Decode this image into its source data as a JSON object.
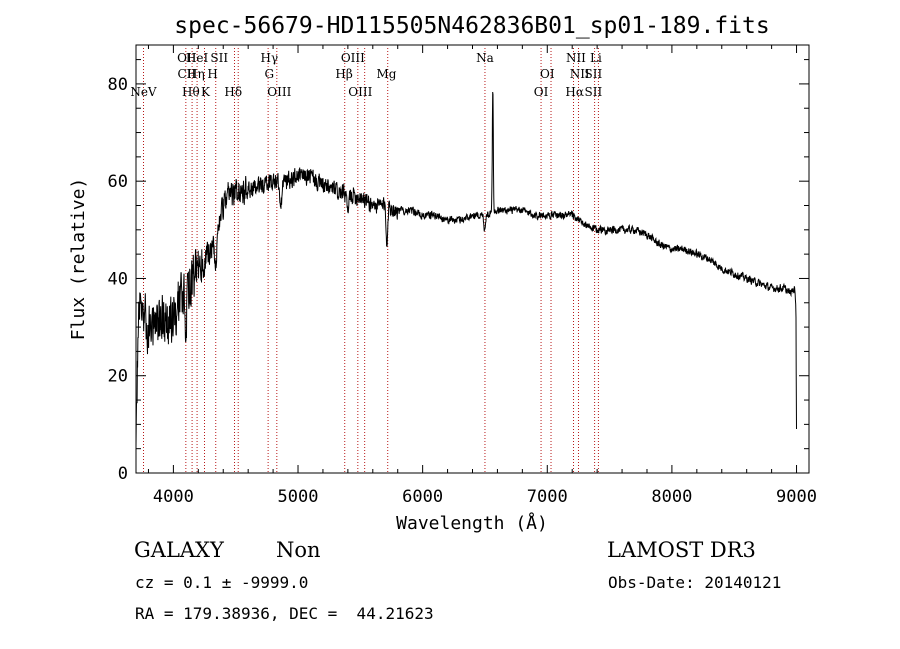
{
  "chart_data": {
    "type": "line",
    "title": "spec-56679-HD115505N462836B01_sp01-189.fits",
    "xlabel": "Wavelength (Å)",
    "ylabel": "Flux (relative)",
    "xlim": [
      3700,
      9100
    ],
    "ylim": [
      0,
      88
    ],
    "x_ticks": [
      4000,
      5000,
      6000,
      7000,
      8000,
      9000
    ],
    "y_ticks": [
      0,
      20,
      40,
      60,
      80
    ],
    "anchors": [
      [
        3700,
        3
      ],
      [
        3720,
        35
      ],
      [
        3760,
        32
      ],
      [
        3800,
        30
      ],
      [
        3850,
        31
      ],
      [
        3900,
        32
      ],
      [
        3950,
        31
      ],
      [
        4000,
        33
      ],
      [
        4050,
        36
      ],
      [
        4100,
        38
      ],
      [
        4150,
        40
      ],
      [
        4200,
        42
      ],
      [
        4250,
        44
      ],
      [
        4300,
        46
      ],
      [
        4350,
        50
      ],
      [
        4400,
        55
      ],
      [
        4450,
        57
      ],
      [
        4500,
        58
      ],
      [
        4550,
        58
      ],
      [
        4600,
        58
      ],
      [
        4700,
        59
      ],
      [
        4800,
        60
      ],
      [
        4900,
        60
      ],
      [
        5000,
        61
      ],
      [
        5100,
        61
      ],
      [
        5200,
        59
      ],
      [
        5300,
        58
      ],
      [
        5400,
        57
      ],
      [
        5500,
        57
      ],
      [
        5600,
        55
      ],
      [
        5700,
        55
      ],
      [
        5800,
        54
      ],
      [
        5900,
        54
      ],
      [
        6000,
        53
      ],
      [
        6100,
        53
      ],
      [
        6200,
        52
      ],
      [
        6300,
        52
      ],
      [
        6400,
        53
      ],
      [
        6500,
        53
      ],
      [
        6600,
        54
      ],
      [
        6700,
        54
      ],
      [
        6800,
        54
      ],
      [
        6900,
        53
      ],
      [
        7000,
        53
      ],
      [
        7100,
        53
      ],
      [
        7200,
        53
      ],
      [
        7300,
        51
      ],
      [
        7400,
        50
      ],
      [
        7500,
        50
      ],
      [
        7600,
        50
      ],
      [
        7700,
        50
      ],
      [
        7800,
        49
      ],
      [
        7900,
        47
      ],
      [
        8000,
        46
      ],
      [
        8100,
        46
      ],
      [
        8200,
        45
      ],
      [
        8300,
        44
      ],
      [
        8400,
        42
      ],
      [
        8500,
        41
      ],
      [
        8600,
        40
      ],
      [
        8700,
        39
      ],
      [
        8800,
        38
      ],
      [
        8900,
        38
      ],
      [
        8950,
        37
      ],
      [
        8985,
        38
      ],
      [
        8995,
        34
      ],
      [
        9000,
        8
      ]
    ],
    "noise_bands": [
      {
        "from": 3700,
        "to": 4250,
        "amplitude": 7
      },
      {
        "from": 4250,
        "to": 4600,
        "amplitude": 4
      },
      {
        "from": 4600,
        "to": 5800,
        "amplitude": 2.5
      },
      {
        "from": 5800,
        "to": 9000,
        "amplitude": 1.1
      }
    ],
    "features": [
      {
        "center": 6563,
        "depth": 26,
        "width": 4
      },
      {
        "center": 4861,
        "depth": -6,
        "width": 8
      },
      {
        "center": 5712,
        "depth": -7,
        "width": 6
      },
      {
        "center": 5400,
        "depth": -4,
        "width": 6
      },
      {
        "center": 6497,
        "depth": -3,
        "width": 6
      },
      {
        "center": 4340,
        "depth": -5,
        "width": 10
      },
      {
        "center": 4101,
        "depth": -6,
        "width": 10
      }
    ],
    "line_markers": [
      {
        "wavelength": 3760,
        "label": "NeV",
        "row": 3
      },
      {
        "wavelength": 4108,
        "label": "OII",
        "row": 1
      },
      {
        "wavelength": 4108,
        "label": "CII",
        "row": 2
      },
      {
        "wavelength": 4140,
        "label": "Hθ",
        "row": 3
      },
      {
        "wavelength": 4190,
        "label": "HeI",
        "row": 1
      },
      {
        "wavelength": 4180,
        "label": "Hη",
        "row": 2
      },
      {
        "wavelength": 4258,
        "label": "K",
        "row": 3
      },
      {
        "wavelength": 4315,
        "label": "H",
        "row": 2
      },
      {
        "wavelength": 4368,
        "label": "SII",
        "row": 1
      },
      {
        "wavelength": 4480,
        "label": "Hδ",
        "row": 3
      },
      {
        "wavelength": 4770,
        "label": "Hγ",
        "row": 1
      },
      {
        "wavelength": 4770,
        "label": "G",
        "row": 2
      },
      {
        "wavelength": 4850,
        "label": "OIII",
        "row": 3
      },
      {
        "wavelength": 5440,
        "label": "OIII",
        "row": 1
      },
      {
        "wavelength": 5370,
        "label": "Hβ",
        "row": 2
      },
      {
        "wavelength": 5500,
        "label": "OIII",
        "row": 3
      },
      {
        "wavelength": 5710,
        "label": "Mg",
        "row": 2
      },
      {
        "wavelength": 6500,
        "label": "Na",
        "row": 1
      },
      {
        "wavelength": 7000,
        "label": "OI",
        "row": 2
      },
      {
        "wavelength": 6950,
        "label": "OI",
        "row": 3
      },
      {
        "wavelength": 7230,
        "label": "NII",
        "row": 1
      },
      {
        "wavelength": 7260,
        "label": "NII",
        "row": 2
      },
      {
        "wavelength": 7220,
        "label": "Hα",
        "row": 3
      },
      {
        "wavelength": 7390,
        "label": "Li",
        "row": 1
      },
      {
        "wavelength": 7370,
        "label": "SII",
        "row": 2
      },
      {
        "wavelength": 7370,
        "label": "SII",
        "row": 3
      }
    ],
    "marker_lines": [
      3760,
      4100,
      4150,
      4190,
      4250,
      4340,
      4490,
      4520,
      4760,
      4830,
      5375,
      5480,
      5535,
      5720,
      6500,
      6950,
      7030,
      7210,
      7250,
      7380,
      7410
    ]
  },
  "info": {
    "object_class": "GALAXY",
    "subclass": "Non",
    "survey": "LAMOST DR3",
    "cz": "cz = 0.1 ± -9999.0",
    "obs_date": "Obs-Date: 20140121",
    "coords": "RA = 179.38936, DEC =  44.21623"
  }
}
